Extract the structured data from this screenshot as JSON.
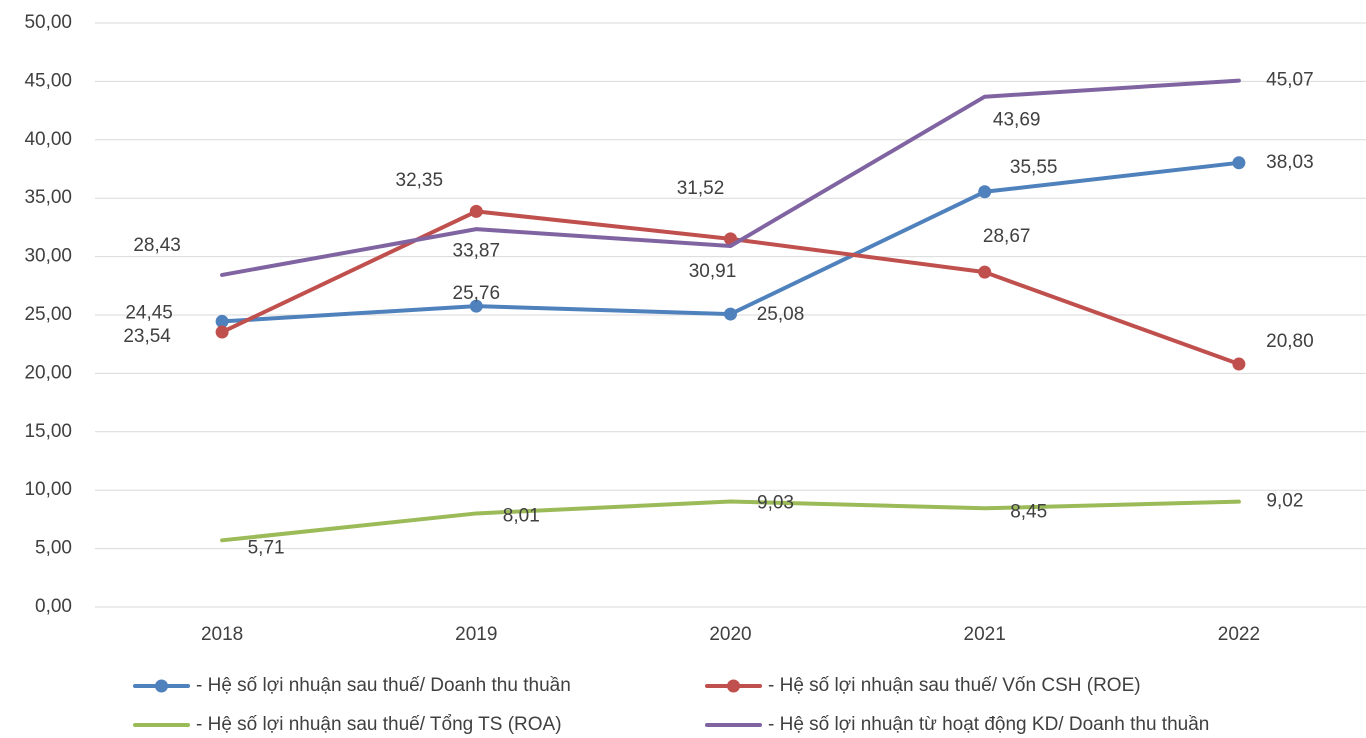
{
  "chart_data": {
    "type": "line",
    "categories": [
      "2018",
      "2019",
      "2020",
      "2021",
      "2022"
    ],
    "ylim": [
      0,
      50
    ],
    "yticks": [
      {
        "value": 0,
        "label": "0,00"
      },
      {
        "value": 5,
        "label": "5,00"
      },
      {
        "value": 10,
        "label": "10,00"
      },
      {
        "value": 15,
        "label": "15,00"
      },
      {
        "value": 20,
        "label": "20,00"
      },
      {
        "value": 25,
        "label": "25,00"
      },
      {
        "value": 30,
        "label": "30,00"
      },
      {
        "value": 35,
        "label": "35,00"
      },
      {
        "value": 40,
        "label": "40,00"
      },
      {
        "value": 45,
        "label": "45,00"
      },
      {
        "value": 50,
        "label": "50,00"
      }
    ],
    "grid": true,
    "legend": "bottom",
    "series": [
      {
        "name": "- Hệ số lợi nhuận sau thuế/ Doanh thu thuần",
        "color": "#4f81bd",
        "marker": true,
        "values": [
          24.45,
          25.76,
          25.08,
          35.55,
          38.03
        ],
        "value_labels": [
          "24,45",
          "25,76",
          "25,08",
          "35,55",
          "38,03"
        ]
      },
      {
        "name": "- Hệ số lợi nhuận sau thuế/ Vốn CSH (ROE)",
        "color": "#c0504d",
        "marker": true,
        "values": [
          23.54,
          33.87,
          31.52,
          28.67,
          20.8
        ],
        "value_labels": [
          "23,54",
          "33,87",
          "31,52",
          "28,67",
          "20,80"
        ]
      },
      {
        "name": "- Hệ số lợi nhuận sau thuế/ Tổng TS (ROA)",
        "color": "#9bbb59",
        "marker": false,
        "values": [
          5.71,
          8.01,
          9.03,
          8.45,
          9.02
        ],
        "value_labels": [
          "5,71",
          "8,01",
          "9,03",
          "8,45",
          "9,02"
        ]
      },
      {
        "name": "- Hệ số lợi nhuận từ hoạt động KD/ Doanh thu thuần",
        "color": "#8064a2",
        "marker": false,
        "values": [
          28.43,
          32.35,
          30.91,
          43.69,
          45.07
        ],
        "value_labels": [
          "28,43",
          "32,35",
          "30,91",
          "43,69",
          "45,07"
        ]
      }
    ]
  }
}
